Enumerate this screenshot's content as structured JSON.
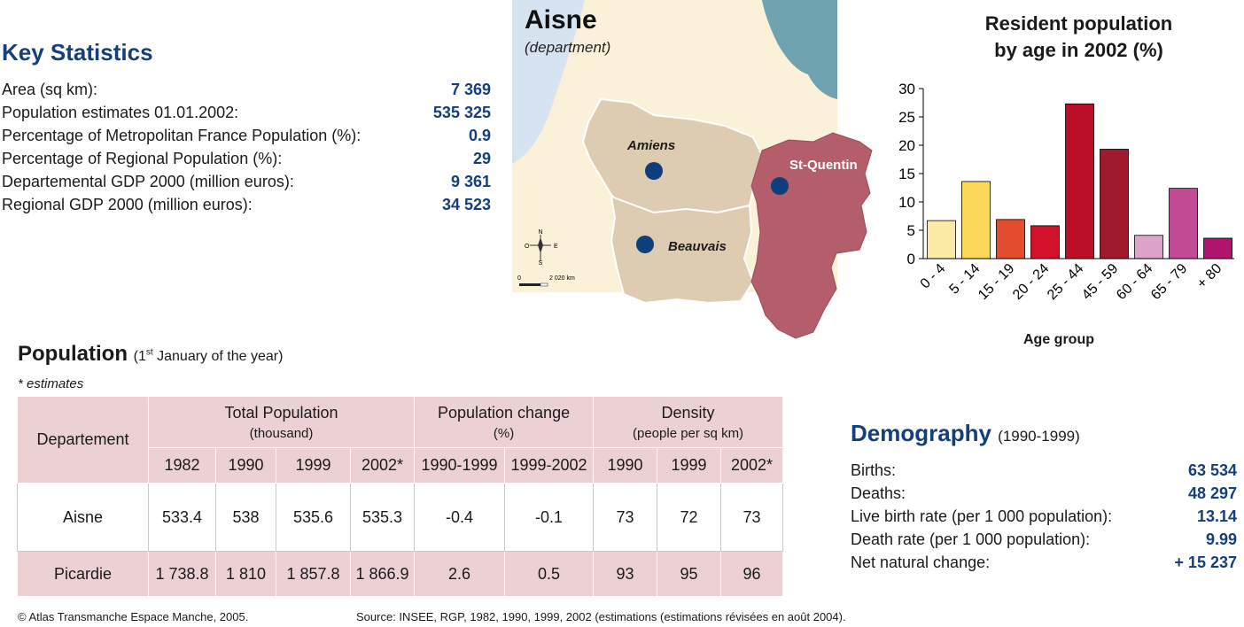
{
  "key_statistics": {
    "title": "Key Statistics",
    "rows": [
      {
        "label": "Area (sq km):",
        "value": "7 369"
      },
      {
        "label": "Population estimates 01.01.2002:",
        "value": "535 325"
      },
      {
        "label": "Percentage of Metropolitan France Population (%):",
        "value": "0.9"
      },
      {
        "label": "Percentage of Regional Population (%):",
        "value": "29"
      },
      {
        "label": "Departemental GDP 2000 (million euros):",
        "value": "9 361"
      },
      {
        "label": "Regional GDP 2000 (million euros):",
        "value": "34 523"
      }
    ]
  },
  "map": {
    "title": "Aisne",
    "subtitle": "(department)",
    "cities": [
      "Amiens",
      "Beauvais",
      "St-Quentin"
    ],
    "compass": {
      "n": "N",
      "s": "S",
      "e": "E",
      "w": "O"
    },
    "scale": {
      "start": "0",
      "end": "2 020 km"
    },
    "colors": {
      "sea": "#6fa3b0",
      "channel": "#d6e4f2",
      "land": "#fbf1d9",
      "dept": "#ddcbb2",
      "aisne": "#b45d6b",
      "city": "#0f3e7c"
    }
  },
  "chart_data": {
    "type": "bar",
    "title_line1": "Resident population",
    "title_line2": "by age in 2002 (%)",
    "xlabel": "Age group",
    "ylabel": "",
    "ylim": [
      0,
      30
    ],
    "yticks": [
      0,
      5,
      10,
      15,
      20,
      25,
      30
    ],
    "categories": [
      "0 - 4",
      "5 - 14",
      "15 - 19",
      "20 - 24",
      "25 - 44",
      "45 - 59",
      "60 - 64",
      "65 - 79",
      "+ 80"
    ],
    "values": [
      6.7,
      13.6,
      6.9,
      5.8,
      27.3,
      19.3,
      4.1,
      12.4,
      3.6
    ],
    "colors": [
      "#fbeaa6",
      "#fcd75a",
      "#e34c2e",
      "#d2112b",
      "#bb0f28",
      "#9e1a2d",
      "#dea3c8",
      "#c24b95",
      "#b0146c"
    ],
    "grid": false,
    "legend": "none"
  },
  "population": {
    "title": "Population",
    "note_before": "(1",
    "note_sup": "st",
    "note_after": " January of the year)",
    "estimates_note": "* estimates",
    "headers": {
      "departement": "Departement",
      "total": "Total Population",
      "total_unit": "(thousand)",
      "change": "Population change",
      "change_unit": "(%)",
      "density": "Density",
      "density_unit": "(people per sq km)",
      "years": [
        "1982",
        "1990",
        "1999",
        "2002*",
        "1990-1999",
        "1999-2002",
        "1990",
        "1999",
        "2002*"
      ]
    },
    "rows": [
      {
        "name": "Aisne",
        "values": [
          "533.4",
          "538",
          "535.6",
          "535.3",
          "-0.4",
          "-0.1",
          "73",
          "72",
          "73"
        ]
      },
      {
        "name": "Picardie",
        "values": [
          "1 738.8",
          "1 810",
          "1 857.8",
          "1 866.9",
          "2.6",
          "0.5",
          "93",
          "95",
          "96"
        ]
      }
    ]
  },
  "demography": {
    "title": "Demography",
    "period": "(1990-1999)",
    "rows": [
      {
        "label": "Births:",
        "value": "63 534"
      },
      {
        "label": "Deaths:",
        "value": "48 297"
      },
      {
        "label": "Live birth rate (per 1 000 population):",
        "value": "13.14"
      },
      {
        "label": "Death rate (per 1 000 population):",
        "value": "9.99"
      },
      {
        "label": "Net natural change:",
        "value": "+ 15 237"
      }
    ]
  },
  "footer": {
    "copyright": "© Atlas Transmanche Espace Manche, 2005.",
    "source": "Source: INSEE, RGP, 1982, 1990, 1999, 2002 (estimations (estimations révisées en août 2004)."
  }
}
